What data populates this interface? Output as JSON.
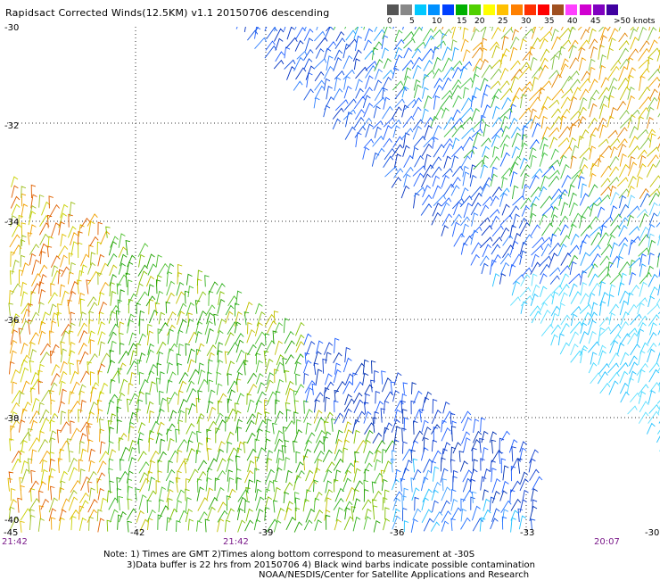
{
  "title": "Rapidsact Corrected Winds(12.5KM) v1.1 20150706 descending",
  "scale": {
    "swatches": [
      "#555555",
      "#888888",
      "#00c8ff",
      "#0090ff",
      "#0040ff",
      "#00b000",
      "#50d000",
      "#ffff00",
      "#ffc000",
      "#ff8000",
      "#ff3000",
      "#ff0000",
      "#a05020",
      "#ff40ff",
      "#d000d0",
      "#8000c0",
      "#4000a0"
    ],
    "labels": [
      "0",
      "5",
      "10",
      "15",
      "20",
      "25",
      "30",
      "35",
      "40",
      "45",
      ">50 knots"
    ]
  },
  "map": {
    "lat_labels": [
      "-30",
      "-32",
      "-34",
      "-36",
      "-38",
      "-40"
    ],
    "lon_labels": [
      "-45",
      "-42",
      "-39",
      "-36",
      "-33",
      "-30"
    ],
    "time_labels": [
      "21:42",
      "21:42",
      "20:07"
    ]
  },
  "notes": [
    "Note: 1) Times are GMT 2)Times along bottom correspond to measurement at -30S",
    "3)Data buffer is 22 hrs from 20150706 4) Black wind barbs indicate possible contamination",
    "NOAA/NESDIS/Center for Satellite Applications and Research"
  ]
}
